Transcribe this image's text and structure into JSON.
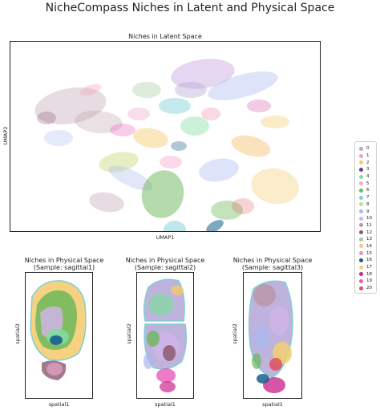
{
  "suptitle": "NicheCompass Niches in Latent and Physical Space",
  "chart_data": [
    {
      "type": "scatter",
      "title": "Niches in Latent Space",
      "xlabel": "UMAP1",
      "ylabel": "UMAP2",
      "grid": false,
      "legend": "right"
    },
    {
      "type": "scatter",
      "title": "Niches in Physical Space",
      "subtitle": "(Sample: sagittal1)",
      "xlabel": "spatial1",
      "ylabel": "spatial2",
      "grid": false
    },
    {
      "type": "scatter",
      "title": "Niches in Physical Space",
      "subtitle": "(Sample: sagittal2)",
      "xlabel": "spatial1",
      "ylabel": "spatial2",
      "grid": false
    },
    {
      "type": "scatter",
      "title": "Niches in Physical Space",
      "subtitle": "(Sample: sagittal3)",
      "xlabel": "spatial1",
      "ylabel": "spatial2",
      "grid": false
    }
  ],
  "legend": {
    "placement": "right",
    "entries": [
      {
        "label": "0",
        "color": "#b4a6d8"
      },
      {
        "label": "1",
        "color": "#f0a0b8"
      },
      {
        "label": "2",
        "color": "#f4c96a"
      },
      {
        "label": "3",
        "color": "#6a3d8c"
      },
      {
        "label": "4",
        "color": "#7fdba0"
      },
      {
        "label": "5",
        "color": "#f7a9d0"
      },
      {
        "label": "6",
        "color": "#6cb85a"
      },
      {
        "label": "7",
        "color": "#7ed0d6"
      },
      {
        "label": "8",
        "color": "#c7d97a"
      },
      {
        "label": "9",
        "color": "#a9b8ee"
      },
      {
        "label": "10",
        "color": "#d0b4e8"
      },
      {
        "label": "11",
        "color": "#b89aa8"
      },
      {
        "label": "12",
        "color": "#8a5a70"
      },
      {
        "label": "13",
        "color": "#a0c8a0"
      },
      {
        "label": "14",
        "color": "#f6c67a"
      },
      {
        "label": "15",
        "color": "#e890c0"
      },
      {
        "label": "16",
        "color": "#1a5e8a"
      },
      {
        "label": "17",
        "color": "#f0d070"
      },
      {
        "label": "18",
        "color": "#cc2a90"
      },
      {
        "label": "19",
        "color": "#e85ab8"
      },
      {
        "label": "20",
        "color": "#e0505a"
      }
    ]
  }
}
